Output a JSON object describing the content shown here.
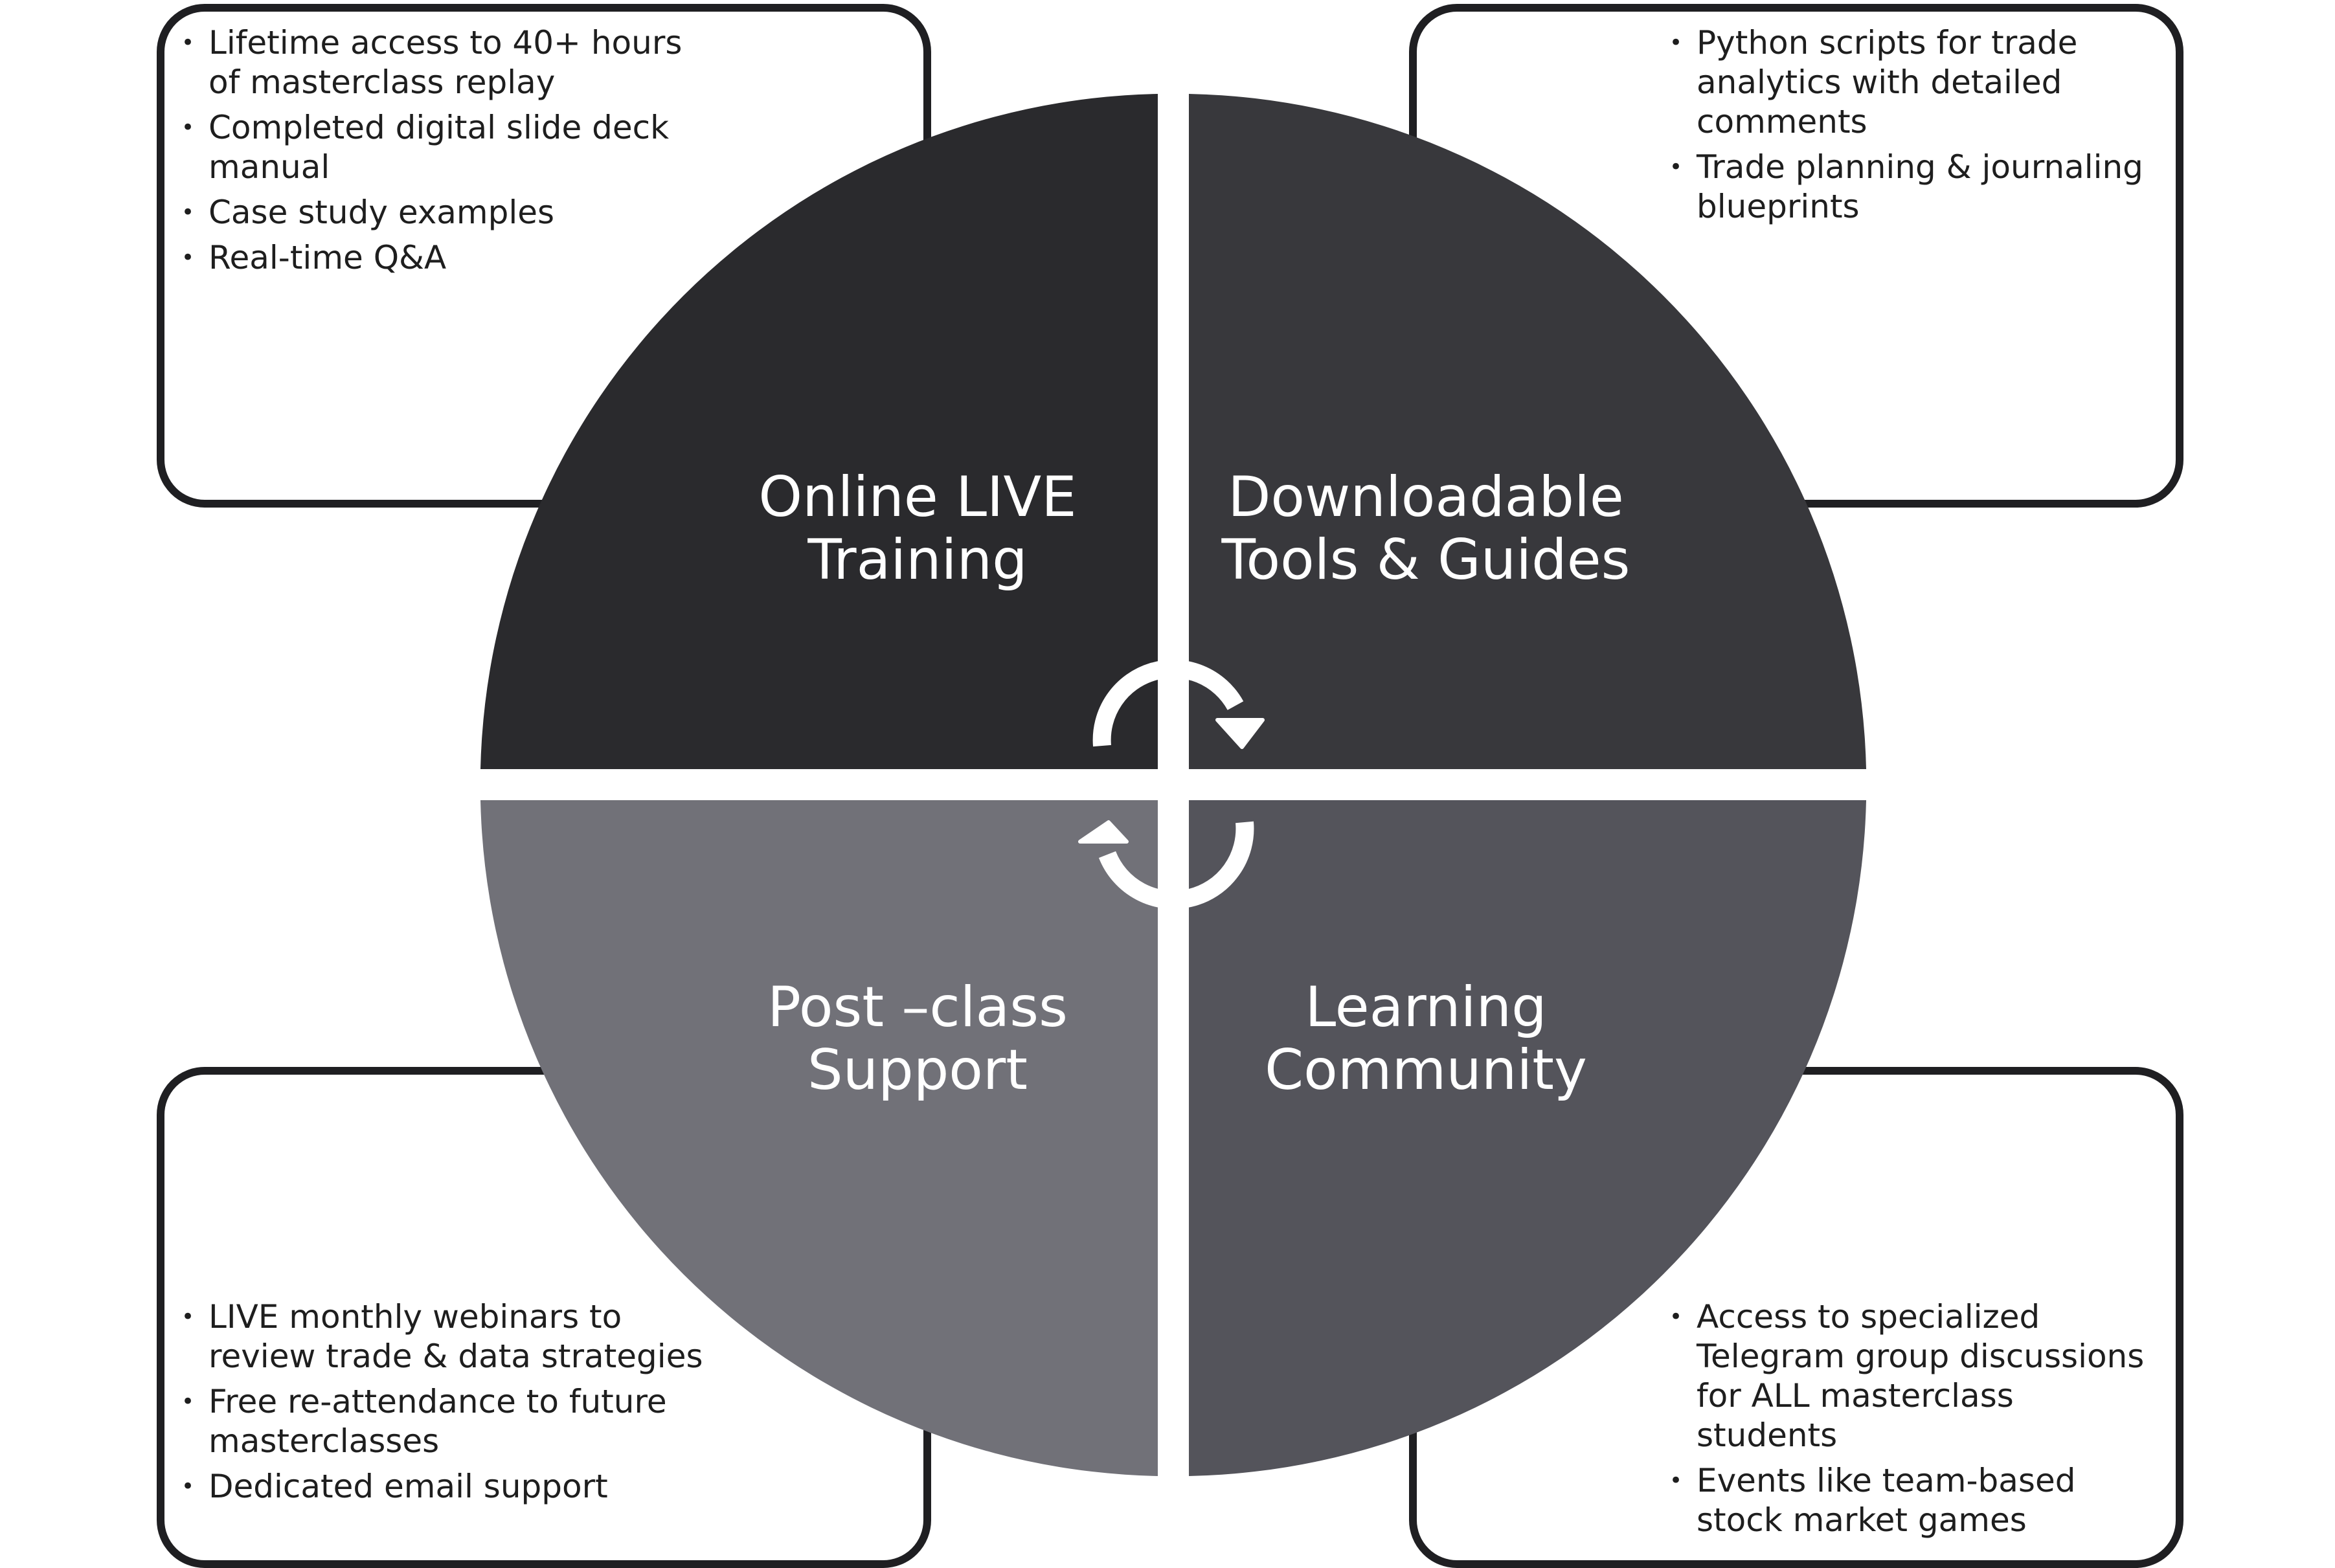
{
  "colors": {
    "quadrant_online_live_training": "#2a2a2d",
    "quadrant_downloadable_tools": "#38383c",
    "quadrant_post_class_support": "#717178",
    "quadrant_learning_community": "#54545b",
    "box_border": "#1f1f22",
    "arrow": "#ffffff"
  },
  "bullet_symbol": "•",
  "quadrants": {
    "top_left": {
      "label_line1": "Online LIVE",
      "label_line2": "Training",
      "items": [
        "Lifetime access to 40+ hours of masterclass replay",
        "Completed digital slide deck manual",
        "Case study examples",
        "Real-time Q&A"
      ]
    },
    "top_right": {
      "label_line1": "Downloadable",
      "label_line2": "Tools & Guides",
      "items": [
        "Python scripts for trade analytics with detailed comments",
        "Trade planning & journaling blueprints"
      ]
    },
    "bottom_left": {
      "label_line1": "Post –class",
      "label_line2": "Support",
      "items": [
        "LIVE monthly webinars to review trade & data strategies",
        "Free re-attendance to future masterclasses",
        "Dedicated email support"
      ]
    },
    "bottom_right": {
      "label_line1": "Learning",
      "label_line2": "Community",
      "items": [
        "Access to specialized Telegram group discussions for ALL masterclass students",
        "Events like team-based stock market games"
      ]
    }
  },
  "center_arrows": {
    "icon": "circular-arrows-icon"
  }
}
